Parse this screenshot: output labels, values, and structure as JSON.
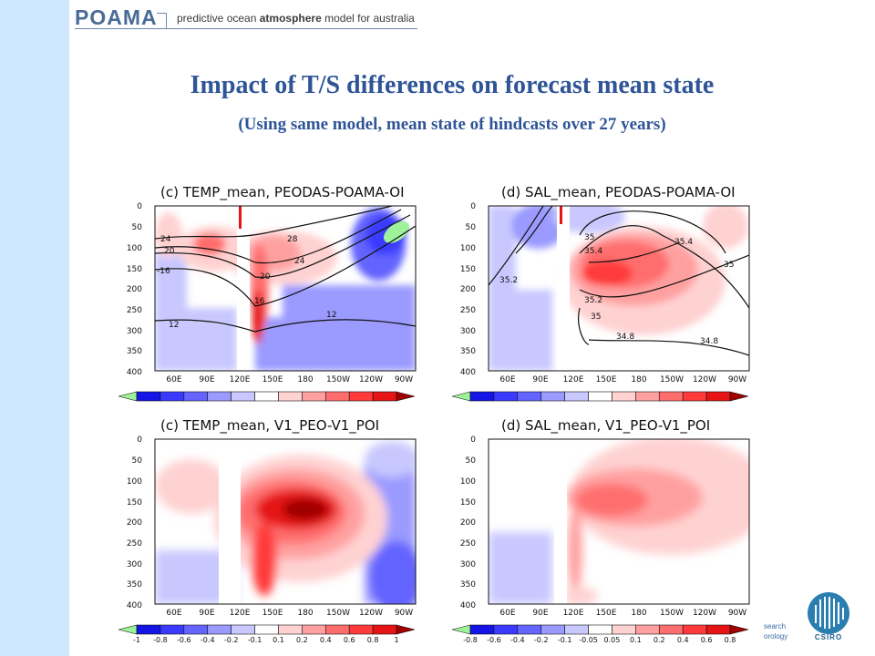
{
  "header": {
    "logo": "POAMA",
    "tagline_pre": "predictive ocean ",
    "tagline_bold": "atmosphere",
    "tagline_post": " model for australia"
  },
  "slide": {
    "title": "Impact of T/S differences on forecast mean state",
    "subtitle": "(Using same model, mean state of hindcasts over 27 years)"
  },
  "panels": [
    {
      "title": "(c) TEMP_mean, PEODAS-POAMA-OI",
      "contour_labels": [
        "24",
        "20",
        "-16",
        "28",
        "24",
        "20",
        "16",
        "12",
        "12"
      ]
    },
    {
      "title": "(d) SAL_mean, PEODAS-POAMA-OI",
      "contour_labels": [
        "35",
        "35.4",
        "35.4",
        "35.2",
        "35",
        "35.2",
        "35",
        "34.8",
        "34.8"
      ]
    },
    {
      "title": "(c) TEMP_mean, V1_PEO-V1_POI",
      "contour_labels": []
    },
    {
      "title": "(d) SAL_mean, V1_PEO-V1_POI",
      "contour_labels": []
    }
  ],
  "axes": {
    "y_ticks": [
      "0",
      "50",
      "100",
      "150",
      "200",
      "250",
      "300",
      "350",
      "400"
    ],
    "x_ticks": [
      "60E",
      "90E",
      "120E",
      "150E",
      "180",
      "150W",
      "120W",
      "90W"
    ]
  },
  "colorbars": {
    "temp_labels": [
      "-1",
      "-0.8",
      "-0.6",
      "-0.4",
      "-0.2",
      "-0.1",
      "0.1",
      "0.2",
      "0.4",
      "0.6",
      "0.8",
      "1"
    ],
    "sal_labels": [
      "-0.8",
      "-0.6",
      "-0.4",
      "-0.2",
      "-0.1",
      "-0.05",
      "0.05",
      "0.1",
      "0.2",
      "0.4",
      "0.6",
      "0.8"
    ],
    "colors": [
      "#9ef29a",
      "#1414e6",
      "#3a3aff",
      "#6464ff",
      "#9a9aff",
      "#c8c8ff",
      "#ffffff",
      "#ffd2d2",
      "#ffa0a0",
      "#ff6e6e",
      "#ff3a3a",
      "#e61414",
      "#a00000"
    ]
  },
  "footer": {
    "line1": "search",
    "line2": "orology",
    "csiro": "CSIRO"
  }
}
